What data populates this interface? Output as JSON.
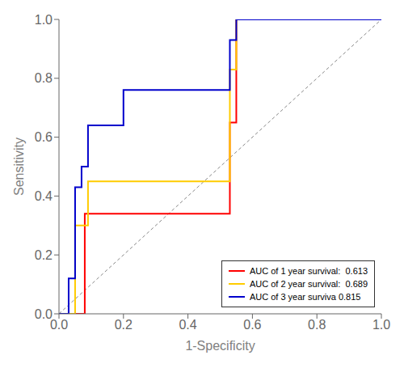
{
  "chart_data": {
    "type": "line",
    "xlabel": "1-Specificity",
    "ylabel": "Sensitivity",
    "xlim": [
      0.0,
      1.0
    ],
    "ylim": [
      0.0,
      1.0
    ],
    "xticks": [
      {
        "value": 0.0,
        "label": "0.0"
      },
      0.2,
      0.4,
      0.6,
      0.8,
      {
        "value": 1.0,
        "label": "1.0"
      }
    ],
    "yticks": [
      {
        "value": 0.0,
        "label": "0.0"
      },
      0.2,
      0.4,
      0.6,
      0.8,
      {
        "value": 1.0,
        "label": "1.0"
      }
    ],
    "grid": false,
    "legend": "lower right",
    "series": [
      {
        "color": "#888888",
        "line_style": "dashed",
        "x": [
          0,
          1
        ],
        "values": [
          0,
          1
        ]
      },
      {
        "name": "AUC of 1 year survival:  0.613",
        "color": "#ff0000",
        "line_style": "solid",
        "x": [
          0.0,
          0.0,
          0.08,
          0.08,
          0.53,
          0.53,
          0.55,
          0.55,
          1.0
        ],
        "values": [
          0.0,
          0.0,
          0.0,
          0.34,
          0.34,
          0.65,
          0.65,
          1.0,
          1.0
        ]
      },
      {
        "name": "AUC of 2 year survival:  0.689",
        "color": "#ffcc00",
        "line_style": "solid",
        "x": [
          0.0,
          0.0,
          0.05,
          0.05,
          0.09,
          0.09,
          0.53,
          0.53,
          0.55,
          0.55,
          1.0
        ],
        "values": [
          0.0,
          0.0,
          0.0,
          0.3,
          0.3,
          0.45,
          0.45,
          0.83,
          0.83,
          1.0,
          1.0
        ]
      },
      {
        "name": "AUC of 3 year surviva 0.815",
        "color": "#0000cc",
        "line_style": "solid",
        "x": [
          0.0,
          0.0,
          0.03,
          0.03,
          0.05,
          0.05,
          0.07,
          0.07,
          0.09,
          0.09,
          0.2,
          0.2,
          0.53,
          0.53,
          0.55,
          0.55,
          1.0
        ],
        "values": [
          0.0,
          0.0,
          0.0,
          0.12,
          0.12,
          0.43,
          0.43,
          0.5,
          0.5,
          0.64,
          0.64,
          0.76,
          0.76,
          0.93,
          0.93,
          1.0,
          1.0
        ]
      }
    ]
  }
}
